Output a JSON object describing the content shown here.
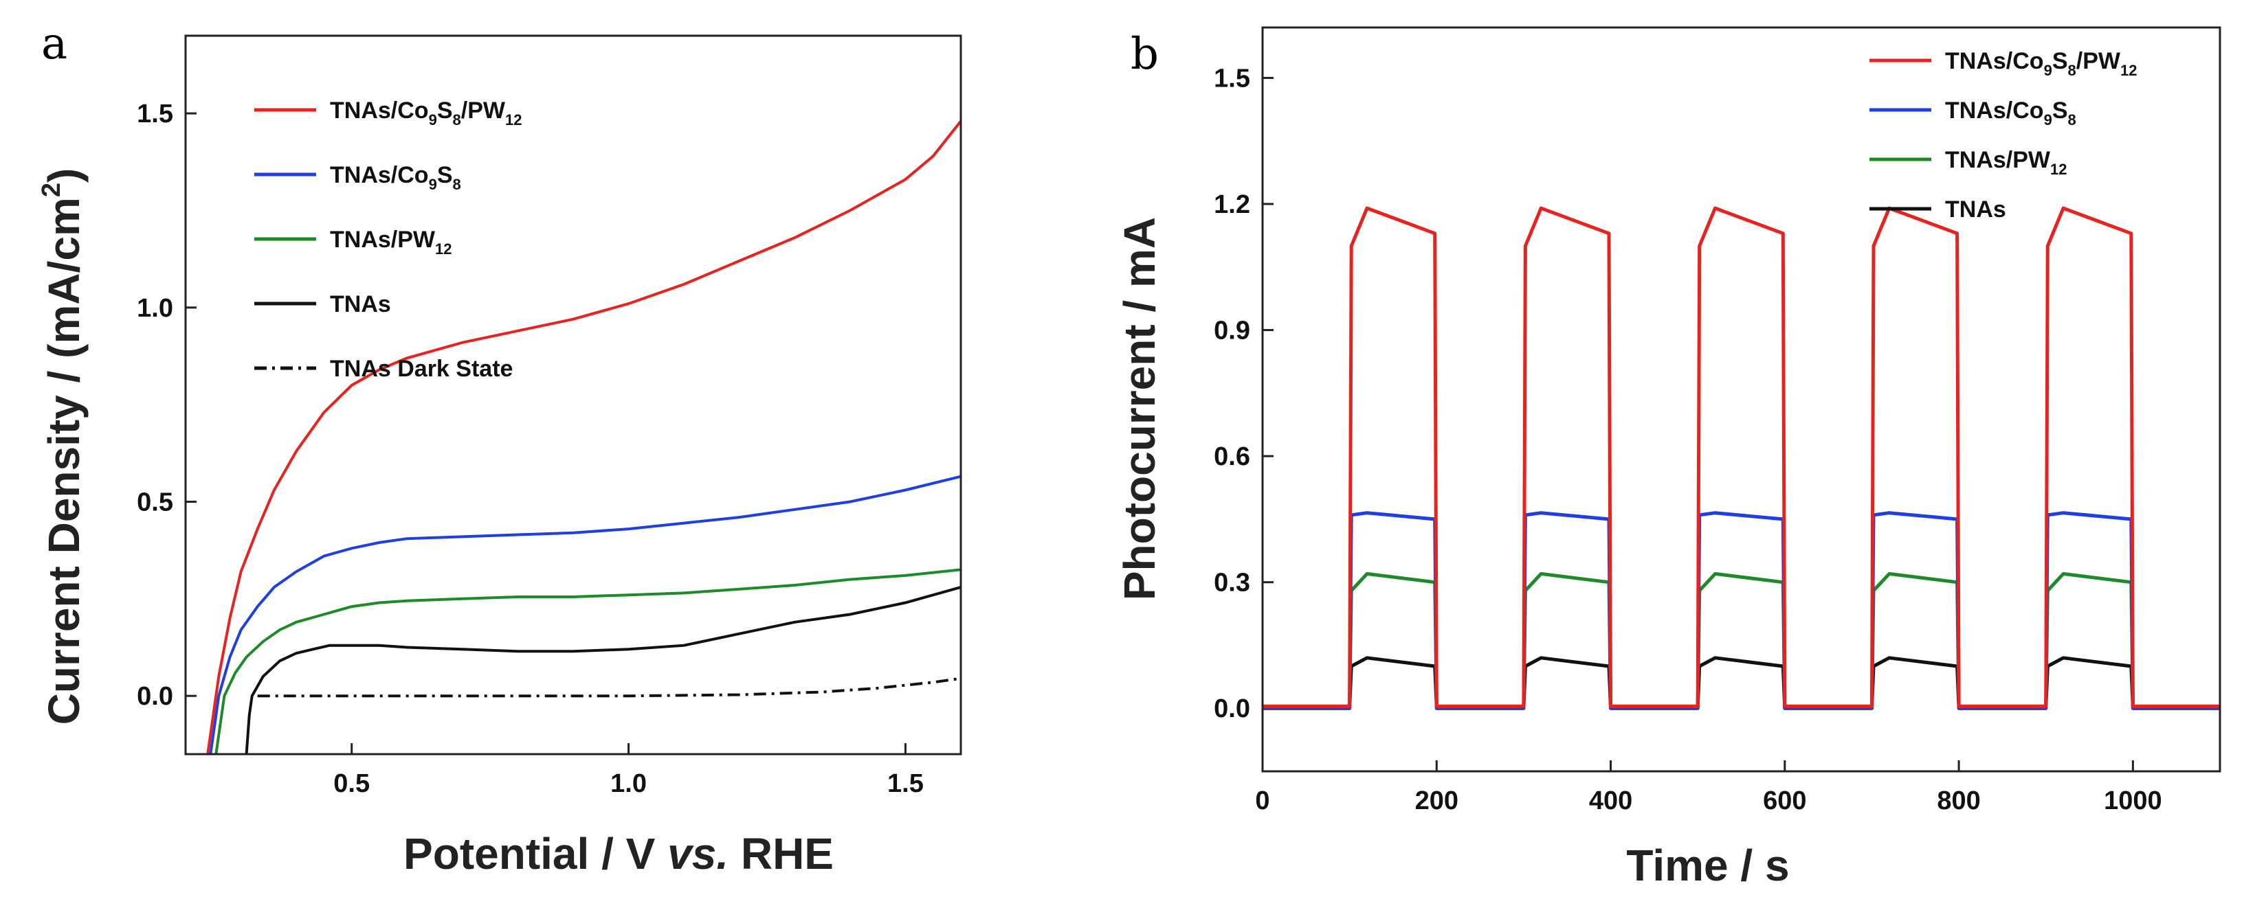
{
  "figure": {
    "panel_a": {
      "letter": "a",
      "xlabel_prefix": "Potential / V ",
      "xlabel_italic": "vs.",
      "xlabel_suffix": " RHE",
      "ylabel": "Current Density / (mA/cm",
      "ylabel_sup": "2",
      "ylabel_close": ")"
    },
    "panel_b": {
      "letter": "b",
      "xlabel": "Time / s",
      "ylabel": "Photocurrent / mA"
    }
  },
  "chart_data": [
    {
      "id": "a",
      "type": "line",
      "title": "",
      "xlabel": "Potential / V vs. RHE",
      "ylabel": "Current Density / (mA/cm2)",
      "xlim": [
        0.2,
        1.6
      ],
      "ylim": [
        -0.15,
        1.7
      ],
      "xticks": [
        0.5,
        1.0,
        1.5
      ],
      "xtick_labels": [
        "0.5",
        "1.0",
        "1.5"
      ],
      "yticks": [
        0.0,
        0.5,
        1.0,
        1.5
      ],
      "ytick_labels": [
        "0.0",
        "0.5",
        "1.0",
        "1.5"
      ],
      "legend_position": "top-left",
      "series": [
        {
          "name": "TNAs/Co9S8/PW12",
          "legend": {
            "parts": [
              "TNAs/Co",
              "9",
              "S",
              "8",
              "/PW",
              "12"
            ]
          },
          "color": "#e8231f",
          "style": "solid",
          "x": [
            0.24,
            0.26,
            0.28,
            0.3,
            0.33,
            0.36,
            0.4,
            0.45,
            0.5,
            0.55,
            0.6,
            0.7,
            0.8,
            0.9,
            1.0,
            1.1,
            1.2,
            1.3,
            1.4,
            1.5,
            1.55,
            1.6
          ],
          "y": [
            -0.15,
            0.05,
            0.2,
            0.32,
            0.43,
            0.53,
            0.63,
            0.73,
            0.8,
            0.84,
            0.87,
            0.91,
            0.94,
            0.97,
            1.01,
            1.06,
            1.12,
            1.18,
            1.25,
            1.33,
            1.39,
            1.48
          ]
        },
        {
          "name": "TNAs/Co9S8",
          "legend": {
            "parts": [
              "TNAs/Co",
              "9",
              "S",
              "8"
            ]
          },
          "color": "#1f3fe0",
          "style": "solid",
          "x": [
            0.245,
            0.26,
            0.28,
            0.3,
            0.33,
            0.36,
            0.4,
            0.45,
            0.5,
            0.55,
            0.6,
            0.7,
            0.8,
            0.9,
            1.0,
            1.1,
            1.2,
            1.3,
            1.4,
            1.5,
            1.6
          ],
          "y": [
            -0.15,
            0.0,
            0.1,
            0.17,
            0.23,
            0.28,
            0.32,
            0.36,
            0.38,
            0.395,
            0.405,
            0.41,
            0.415,
            0.42,
            0.43,
            0.445,
            0.46,
            0.48,
            0.5,
            0.53,
            0.565
          ]
        },
        {
          "name": "TNAs/PW12",
          "legend": {
            "parts": [
              "TNAs/PW",
              "12"
            ]
          },
          "color": "#1f8a2a",
          "style": "solid",
          "x": [
            0.255,
            0.27,
            0.29,
            0.31,
            0.34,
            0.37,
            0.4,
            0.45,
            0.5,
            0.55,
            0.6,
            0.7,
            0.8,
            0.9,
            1.0,
            1.1,
            1.2,
            1.3,
            1.4,
            1.5,
            1.6
          ],
          "y": [
            -0.15,
            0.0,
            0.06,
            0.1,
            0.14,
            0.17,
            0.19,
            0.21,
            0.23,
            0.24,
            0.245,
            0.25,
            0.255,
            0.255,
            0.26,
            0.265,
            0.275,
            0.285,
            0.3,
            0.31,
            0.325
          ]
        },
        {
          "name": "TNAs",
          "legend": {
            "parts": [
              "TNAs"
            ]
          },
          "color": "#111111",
          "style": "solid",
          "x": [
            0.31,
            0.315,
            0.32,
            0.34,
            0.37,
            0.4,
            0.43,
            0.46,
            0.5,
            0.55,
            0.6,
            0.7,
            0.8,
            0.9,
            1.0,
            1.1,
            1.2,
            1.3,
            1.4,
            1.5,
            1.6
          ],
          "y": [
            -0.15,
            -0.05,
            0.0,
            0.05,
            0.09,
            0.11,
            0.12,
            0.13,
            0.13,
            0.13,
            0.125,
            0.12,
            0.115,
            0.115,
            0.12,
            0.13,
            0.16,
            0.19,
            0.21,
            0.24,
            0.28
          ]
        },
        {
          "name": "TNAs Dark State",
          "legend": {
            "parts": [
              "TNAs Dark State"
            ]
          },
          "color": "#111111",
          "style": "dashdot",
          "x": [
            0.33,
            0.5,
            0.8,
            1.0,
            1.2,
            1.35,
            1.45,
            1.55,
            1.6
          ],
          "y": [
            0.0,
            0.0,
            0.0,
            0.0,
            0.003,
            0.01,
            0.02,
            0.035,
            0.045
          ]
        }
      ]
    },
    {
      "id": "b",
      "type": "line",
      "title": "",
      "xlabel": "Time / s",
      "ylabel": "Photocurrent / mA",
      "xlim": [
        0,
        1100
      ],
      "ylim": [
        -0.15,
        1.62
      ],
      "xticks": [
        0,
        200,
        400,
        600,
        800,
        1000
      ],
      "xtick_labels": [
        "0",
        "200",
        "400",
        "600",
        "800",
        "1000"
      ],
      "yticks": [
        0.0,
        0.3,
        0.6,
        0.9,
        1.2,
        1.5
      ],
      "ytick_labels": [
        "0.0",
        "0.3",
        "0.6",
        "0.9",
        "1.2",
        "1.5"
      ],
      "legend_position": "top-right",
      "light_on_times": [
        100,
        300,
        500,
        700,
        900
      ],
      "light_off_times": [
        200,
        400,
        600,
        800,
        1000
      ],
      "series": [
        {
          "name": "TNAs/Co9S8/PW12",
          "legend": {
            "parts": [
              "TNAs/Co",
              "9",
              "S",
              "8",
              "/PW",
              "12"
            ]
          },
          "color": "#e8231f",
          "on_start": 1.1,
          "peak": 1.19,
          "on_end": 1.13,
          "off": 0.005
        },
        {
          "name": "TNAs/Co9S8",
          "legend": {
            "parts": [
              "TNAs/Co",
              "9",
              "S",
              "8"
            ]
          },
          "color": "#1f3fe0",
          "on_start": 0.46,
          "peak": 0.465,
          "on_end": 0.45,
          "off": 0.0
        },
        {
          "name": "TNAs/PW12",
          "legend": {
            "parts": [
              "TNAs/PW",
              "12"
            ]
          },
          "color": "#1f8a2a",
          "on_start": 0.28,
          "peak": 0.32,
          "on_end": 0.3,
          "off": 0.0
        },
        {
          "name": "TNAs",
          "legend": {
            "parts": [
              "TNAs"
            ]
          },
          "color": "#111111",
          "on_start": 0.1,
          "peak": 0.12,
          "on_end": 0.1,
          "off": 0.0
        }
      ]
    }
  ]
}
